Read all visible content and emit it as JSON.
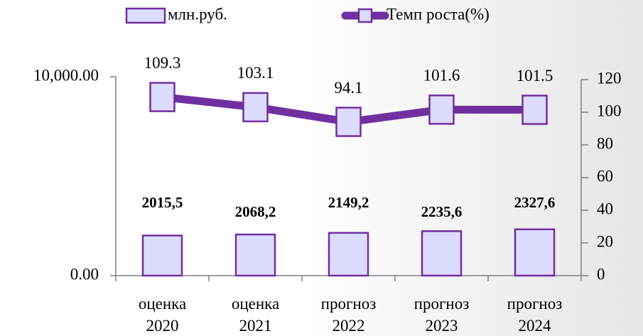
{
  "chart_data": {
    "type": "bar",
    "categories": [
      "оценка 2020",
      "оценка 2021",
      "прогноз 2022",
      "прогноз 2023",
      "прогноз 2024"
    ],
    "series": [
      {
        "name": "млн.руб.",
        "type": "bar",
        "color": "#7030a0",
        "fill": "#dcdcff",
        "values": [
          2015.5,
          2068.2,
          2149.2,
          2235.6,
          2327.6
        ],
        "value_labels": [
          "2015,5",
          "2068,2",
          "2149,2",
          "2235,6",
          "2327,6"
        ]
      },
      {
        "name": "Темп роста(%)",
        "type": "line",
        "axis": "y2",
        "color": "#7030a0",
        "fill": "#dcdcff",
        "values": [
          109.3,
          103.1,
          94.1,
          101.6,
          101.5
        ]
      }
    ],
    "ylim": [
      0,
      10000
    ],
    "yticks": [
      {
        "value": 0,
        "label": "0.00"
      },
      {
        "value": 10000,
        "label": "10,000.00"
      }
    ],
    "y2lim": [
      0,
      120
    ],
    "y2ticks": [
      0,
      20,
      40,
      60,
      80,
      100,
      120
    ],
    "legend": "top"
  }
}
